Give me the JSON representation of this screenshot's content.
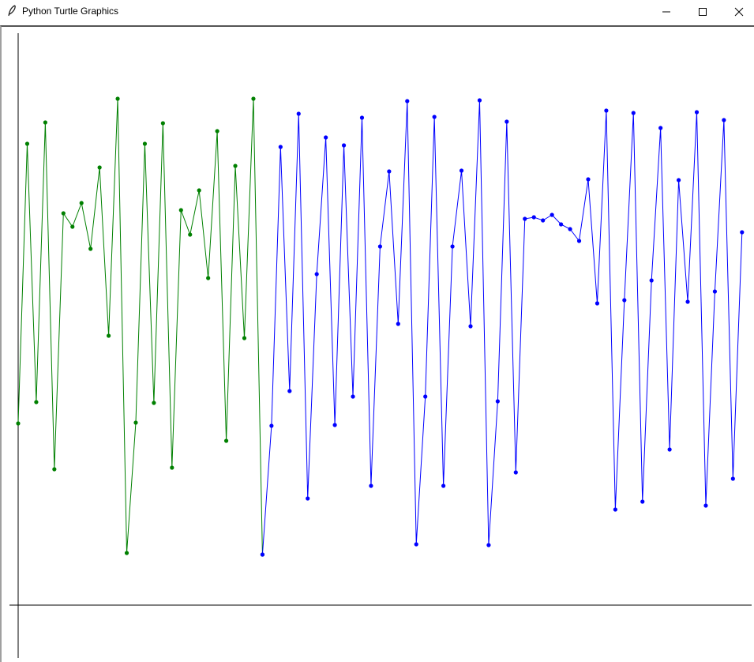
{
  "window": {
    "title": "Python Turtle Graphics",
    "icon": "feather-icon",
    "buttons": [
      "minimize-icon",
      "maximize-icon",
      "close-icon"
    ]
  },
  "chart_data": {
    "type": "line",
    "title": "",
    "xlabel": "",
    "ylabel": "",
    "grid": false,
    "markers": true,
    "line_color": "#000000",
    "series": [
      {
        "color": "#008000",
        "x_start": 0,
        "values": [
          230,
          584,
          257,
          611,
          172,
          496,
          479,
          509,
          451,
          554,
          341,
          641,
          66,
          231,
          584,
          256,
          610,
          174,
          500,
          469,
          525,
          414,
          600,
          208,
          556,
          338,
          641,
          64
        ]
      },
      {
        "color": "#0000ff",
        "x_start": 27,
        "values": [
          64,
          227,
          580,
          271,
          622,
          135,
          419,
          592,
          228,
          582,
          264,
          617,
          151,
          454,
          549,
          356,
          638,
          77,
          264,
          618,
          151,
          454,
          550,
          353,
          639,
          76,
          258,
          612,
          168,
          489,
          491,
          487,
          494,
          482,
          476,
          461,
          539,
          382,
          626,
          121,
          386,
          623,
          131,
          411,
          604,
          197,
          538,
          384,
          624,
          126,
          397,
          614,
          160,
          472
        ]
      }
    ]
  }
}
